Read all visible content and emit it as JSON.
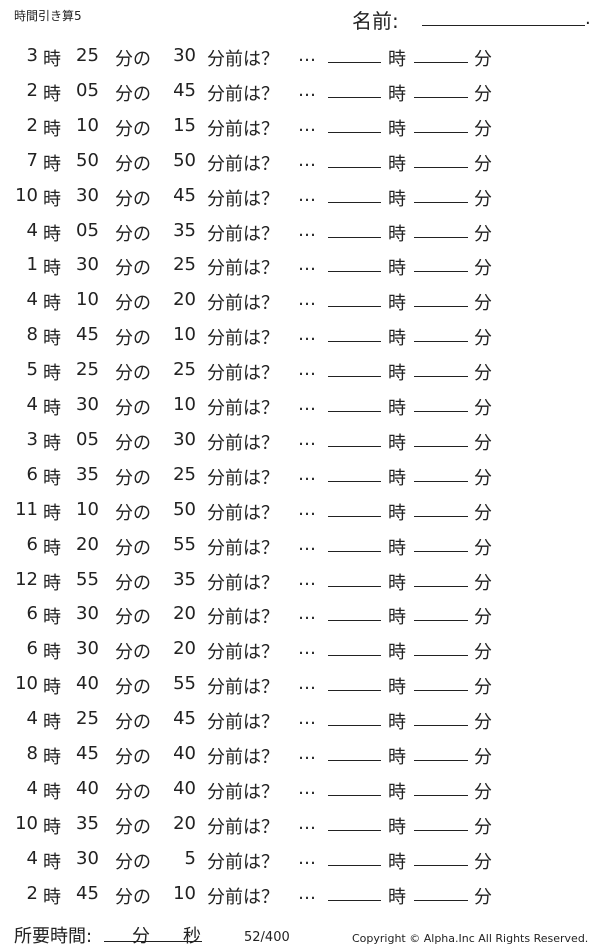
{
  "header": {
    "title": "時間引き算5",
    "name_label": "名前:",
    "name_end": "."
  },
  "labels": {
    "hour": "時",
    "min_of": "分の",
    "min_before": "分前は？",
    "dots": "…",
    "min": "分"
  },
  "problems": [
    {
      "h": "3",
      "m": "25",
      "n": "30"
    },
    {
      "h": "2",
      "m": "05",
      "n": "45"
    },
    {
      "h": "2",
      "m": "10",
      "n": "15"
    },
    {
      "h": "7",
      "m": "50",
      "n": "50"
    },
    {
      "h": "10",
      "m": "30",
      "n": "45"
    },
    {
      "h": "4",
      "m": "05",
      "n": "35"
    },
    {
      "h": "1",
      "m": "30",
      "n": "25"
    },
    {
      "h": "4",
      "m": "10",
      "n": "20"
    },
    {
      "h": "8",
      "m": "45",
      "n": "10"
    },
    {
      "h": "5",
      "m": "25",
      "n": "25"
    },
    {
      "h": "4",
      "m": "30",
      "n": "10"
    },
    {
      "h": "3",
      "m": "05",
      "n": "30"
    },
    {
      "h": "6",
      "m": "35",
      "n": "25"
    },
    {
      "h": "11",
      "m": "10",
      "n": "50"
    },
    {
      "h": "6",
      "m": "20",
      "n": "55"
    },
    {
      "h": "12",
      "m": "55",
      "n": "35"
    },
    {
      "h": "6",
      "m": "30",
      "n": "20"
    },
    {
      "h": "6",
      "m": "30",
      "n": "20"
    },
    {
      "h": "10",
      "m": "40",
      "n": "55"
    },
    {
      "h": "4",
      "m": "25",
      "n": "45"
    },
    {
      "h": "8",
      "m": "45",
      "n": "40"
    },
    {
      "h": "4",
      "m": "40",
      "n": "40"
    },
    {
      "h": "10",
      "m": "35",
      "n": "20"
    },
    {
      "h": "4",
      "m": "30",
      "n": "5"
    },
    {
      "h": "2",
      "m": "45",
      "n": "10"
    }
  ],
  "footer": {
    "time_label": "所要時間:",
    "min": "分",
    "sec": "秒",
    "page": "52/400",
    "copyright": "Copyright ©  Alpha.Inc All Rights Reserved."
  }
}
